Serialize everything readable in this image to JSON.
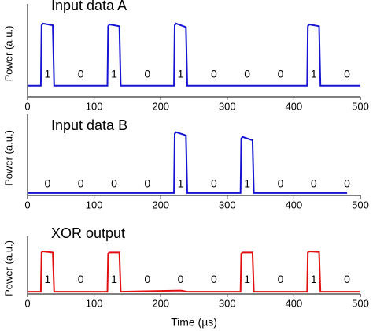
{
  "chart_data": [
    {
      "type": "line",
      "title": "Input data A",
      "y_label": "Power (a.u.)",
      "color": "#1414d2",
      "x": [
        0,
        20,
        21,
        23,
        38,
        40,
        120,
        121,
        123,
        138,
        140,
        220,
        221,
        223,
        238,
        240,
        420,
        421,
        423,
        438,
        440,
        500
      ],
      "values": [
        0.12,
        0.12,
        0.77,
        0.79,
        0.77,
        0.12,
        0.12,
        0.76,
        0.78,
        0.76,
        0.12,
        0.12,
        0.77,
        0.79,
        0.75,
        0.12,
        0.12,
        0.76,
        0.78,
        0.76,
        0.12,
        0.12
      ],
      "xlim": [
        0,
        500
      ],
      "xticks": [
        0,
        100,
        200,
        300,
        400,
        500
      ],
      "ylim": [
        0,
        1
      ],
      "annotations": [
        {
          "text": "1",
          "x": 30
        },
        {
          "text": "0",
          "x": 80
        },
        {
          "text": "1",
          "x": 130
        },
        {
          "text": "0",
          "x": 180
        },
        {
          "text": "1",
          "x": 230
        },
        {
          "text": "0",
          "x": 280
        },
        {
          "text": "0",
          "x": 330
        },
        {
          "text": "0",
          "x": 380
        },
        {
          "text": "1",
          "x": 430
        },
        {
          "text": "0",
          "x": 480
        }
      ]
    },
    {
      "type": "line",
      "title": "Input data B",
      "y_label": "Power (a.u.)",
      "color": "#1414d2",
      "x": [
        0,
        100,
        220,
        221,
        223,
        238,
        240,
        320,
        321,
        323,
        338,
        340,
        480
      ],
      "values": [
        0.03,
        0.03,
        0.03,
        0.76,
        0.78,
        0.74,
        0.03,
        0.03,
        0.7,
        0.72,
        0.68,
        0.03,
        0.03
      ],
      "xlim": [
        0,
        500
      ],
      "xticks": [
        0,
        100,
        200,
        300,
        400,
        500
      ],
      "ylim": [
        0,
        1
      ],
      "annotations": [
        {
          "text": "0",
          "x": 30
        },
        {
          "text": "0",
          "x": 80
        },
        {
          "text": "0",
          "x": 130
        },
        {
          "text": "0",
          "x": 180
        },
        {
          "text": "1",
          "x": 230
        },
        {
          "text": "0",
          "x": 280
        },
        {
          "text": "1",
          "x": 330
        },
        {
          "text": "0",
          "x": 380
        },
        {
          "text": "0",
          "x": 430
        },
        {
          "text": "0",
          "x": 480
        }
      ]
    },
    {
      "type": "line",
      "title": "XOR output",
      "x_label": "Time (µs)",
      "y_label": "Power (a.u.)",
      "color": "#e01010",
      "x": [
        0,
        20,
        21,
        23,
        38,
        40,
        120,
        121,
        123,
        138,
        140,
        230,
        240,
        320,
        321,
        323,
        338,
        340,
        420,
        421,
        423,
        438,
        440,
        500
      ],
      "values": [
        0.04,
        0.04,
        0.72,
        0.74,
        0.72,
        0.04,
        0.04,
        0.7,
        0.72,
        0.72,
        0.04,
        0.06,
        0.04,
        0.04,
        0.7,
        0.72,
        0.72,
        0.04,
        0.04,
        0.72,
        0.74,
        0.73,
        0.04,
        0.04
      ],
      "xlim": [
        0,
        500
      ],
      "xticks": [
        0,
        100,
        200,
        300,
        400,
        500
      ],
      "ylim": [
        0,
        1
      ],
      "annotations": [
        {
          "text": "1",
          "x": 30
        },
        {
          "text": "0",
          "x": 80
        },
        {
          "text": "1",
          "x": 130
        },
        {
          "text": "0",
          "x": 180
        },
        {
          "text": "0",
          "x": 230
        },
        {
          "text": "0",
          "x": 280
        },
        {
          "text": "1",
          "x": 330
        },
        {
          "text": "0",
          "x": 380
        },
        {
          "text": "1",
          "x": 430
        },
        {
          "text": "0",
          "x": 480
        }
      ]
    }
  ]
}
